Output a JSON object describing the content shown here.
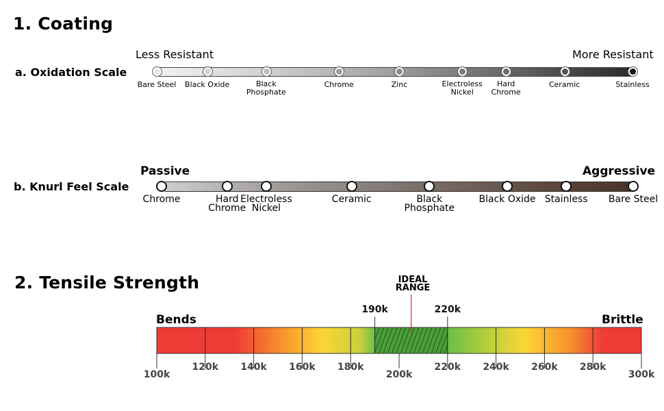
{
  "section1": {
    "title": "1. Coating",
    "oxidation": {
      "label": "a. Oxidation Scale",
      "left_end": "Less Resistant",
      "right_end": "More Resistant",
      "items": [
        {
          "name": "Bare Steel",
          "pos": 0.0,
          "color": "#e8e8e8"
        },
        {
          "name": "Black Oxide",
          "pos": 0.106,
          "color": "#d2d2d2"
        },
        {
          "name": "Black\nPhosphate",
          "pos": 0.23,
          "color": "#bdbdbd"
        },
        {
          "name": "Chrome",
          "pos": 0.383,
          "color": "#9e9e9e"
        },
        {
          "name": "Zinc",
          "pos": 0.51,
          "color": "#8c8c8c"
        },
        {
          "name": "Electroless\nNickel",
          "pos": 0.642,
          "color": "#7a7a7a"
        },
        {
          "name": "Hard\nChrome",
          "pos": 0.734,
          "color": "#6a6a6a"
        },
        {
          "name": "Ceramic",
          "pos": 0.857,
          "color": "#555555"
        },
        {
          "name": "Stainless",
          "pos": 1.0,
          "color": "#111111"
        }
      ]
    },
    "knurl": {
      "label": "b. Knurl Feel Scale",
      "left_end": "Passive",
      "right_end": "Aggressive",
      "items": [
        {
          "name": "Chrome",
          "pos": 0.0
        },
        {
          "name": "Hard\nChrome",
          "pos": 0.139
        },
        {
          "name": "Electroless\nNickel",
          "pos": 0.222
        },
        {
          "name": "Ceramic",
          "pos": 0.403
        },
        {
          "name": "Black\nPhosphate",
          "pos": 0.568
        },
        {
          "name": "Black Oxide",
          "pos": 0.733
        },
        {
          "name": "Stainless",
          "pos": 0.858
        },
        {
          "name": "Bare Steel",
          "pos": 1.0
        }
      ]
    }
  },
  "section2": {
    "title": "2. Tensile Strength",
    "left_end": "Bends",
    "right_end": "Brittle",
    "ideal_label": "IDEAL\nRANGE",
    "scale": {
      "min": 100,
      "max": 300
    },
    "ideal_range": [
      190,
      220
    ],
    "ideal_marker": 205,
    "bottom_ticks": [
      {
        "value": 100,
        "label": "100k"
      },
      {
        "value": 120,
        "label": "120k"
      },
      {
        "value": 140,
        "label": "140k"
      },
      {
        "value": 160,
        "label": "160k"
      },
      {
        "value": 180,
        "label": "180k"
      },
      {
        "value": 200,
        "label": "200k"
      },
      {
        "value": 220,
        "label": "220k"
      },
      {
        "value": 240,
        "label": "240k"
      },
      {
        "value": 260,
        "label": "260k"
      },
      {
        "value": 280,
        "label": "280k"
      },
      {
        "value": 300,
        "label": "300k"
      }
    ],
    "top_ticks": [
      {
        "value": 190,
        "label": "190k"
      },
      {
        "value": 220,
        "label": "220k"
      }
    ],
    "dividers": [
      120,
      140,
      160,
      180,
      190,
      220,
      240,
      260,
      280
    ],
    "colors": {
      "red": "#ee3b36",
      "orange": "#f7942b",
      "yellow": "#fcd535",
      "green": "#6abf45",
      "hatch": "#3f9b38"
    }
  }
}
